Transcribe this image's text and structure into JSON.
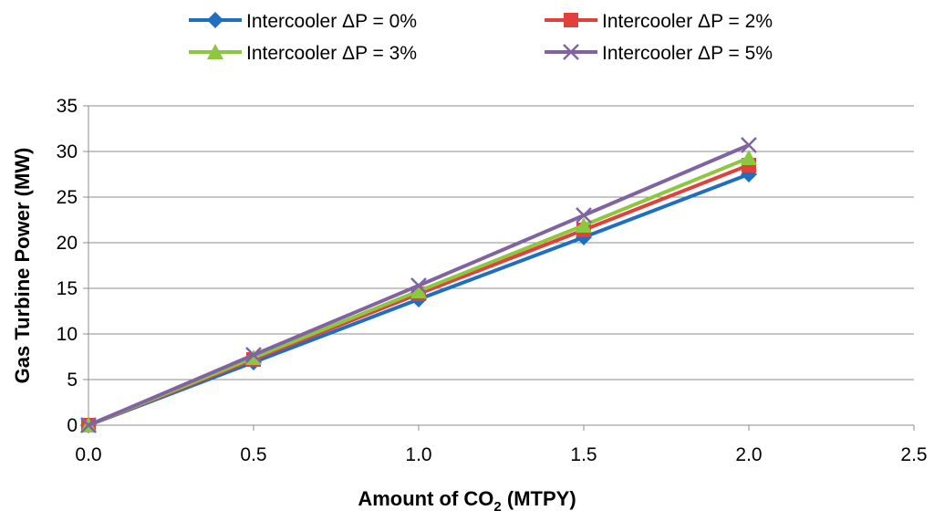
{
  "chart_data": {
    "type": "line",
    "title": "",
    "xlabel_prefix": "Amount of CO",
    "xlabel_subscript": "2",
    "xlabel_suffix": " (MTPY)",
    "ylabel": "Gas Turbine Power (MW)",
    "x": [
      0.0,
      0.5,
      1.0,
      1.5,
      2.0
    ],
    "xlim": [
      0,
      2.5
    ],
    "ylim": [
      0,
      35
    ],
    "x_ticks": [
      "0.0",
      "0.5",
      "1.0",
      "1.5",
      "2.0",
      "2.5"
    ],
    "y_ticks": [
      "0",
      "5",
      "10",
      "15",
      "20",
      "25",
      "30",
      "35"
    ],
    "grid": "horizontal",
    "legend_position": "top",
    "series": [
      {
        "name": "Intercooler ΔP = 0%",
        "marker": "diamond",
        "color": "#1f6fc0",
        "values": [
          0,
          6.9,
          13.8,
          20.6,
          27.5
        ]
      },
      {
        "name": "Intercooler ΔP = 2%",
        "marker": "square",
        "color": "#e0413b",
        "values": [
          0,
          7.2,
          14.4,
          21.4,
          28.5
        ]
      },
      {
        "name": "Intercooler ΔP = 3%",
        "marker": "triangle",
        "color": "#8dc63f",
        "values": [
          0,
          7.4,
          14.7,
          21.9,
          29.3
        ]
      },
      {
        "name": "Intercooler ΔP = 5%",
        "marker": "x",
        "color": "#8064a2",
        "values": [
          0,
          7.7,
          15.3,
          23.0,
          30.7
        ]
      }
    ]
  }
}
